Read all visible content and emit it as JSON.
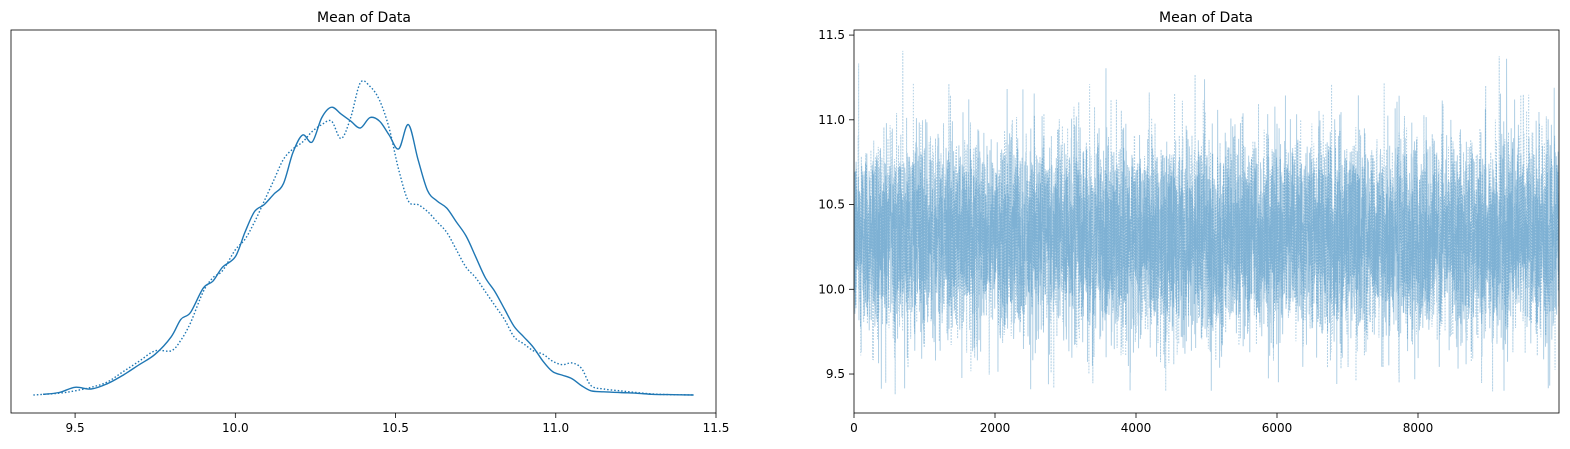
{
  "chart_data": [
    {
      "type": "line",
      "kind": "kde",
      "title": "Mean of Data",
      "xlabel": "",
      "ylabel": "",
      "xlim": [
        9.3,
        11.5
      ],
      "ylim": [
        0,
        1
      ],
      "xticks": [
        9.5,
        10.0,
        10.5,
        11.0,
        11.5
      ],
      "xtick_labels": [
        "9.5",
        "10.0",
        "10.5",
        "11.0",
        "11.5"
      ],
      "yticks_visible": false,
      "grid": false,
      "color": "#1f77b4",
      "series": [
        {
          "style": "solid",
          "x": [
            9.4,
            9.45,
            9.5,
            9.55,
            9.6,
            9.65,
            9.7,
            9.75,
            9.8,
            9.83,
            9.86,
            9.9,
            9.93,
            9.96,
            10.0,
            10.03,
            10.06,
            10.09,
            10.12,
            10.15,
            10.18,
            10.21,
            10.24,
            10.27,
            10.3,
            10.33,
            10.36,
            10.39,
            10.42,
            10.45,
            10.48,
            10.51,
            10.54,
            10.57,
            10.6,
            10.63,
            10.66,
            10.69,
            10.72,
            10.75,
            10.78,
            10.81,
            10.84,
            10.87,
            10.9,
            10.93,
            10.96,
            10.99,
            11.02,
            11.05,
            11.08,
            11.11,
            11.15,
            11.2,
            11.25,
            11.3,
            11.35,
            11.43
          ],
          "y": [
            0.005,
            0.01,
            0.025,
            0.02,
            0.035,
            0.06,
            0.09,
            0.12,
            0.17,
            0.22,
            0.24,
            0.31,
            0.33,
            0.37,
            0.4,
            0.47,
            0.53,
            0.55,
            0.58,
            0.61,
            0.7,
            0.75,
            0.73,
            0.8,
            0.83,
            0.81,
            0.79,
            0.77,
            0.8,
            0.79,
            0.75,
            0.71,
            0.78,
            0.68,
            0.59,
            0.56,
            0.54,
            0.5,
            0.46,
            0.4,
            0.34,
            0.3,
            0.25,
            0.2,
            0.17,
            0.14,
            0.1,
            0.07,
            0.06,
            0.05,
            0.03,
            0.015,
            0.012,
            0.01,
            0.008,
            0.005,
            0.004,
            0.003
          ]
        },
        {
          "style": "dotted",
          "x": [
            9.37,
            9.45,
            9.5,
            9.55,
            9.6,
            9.65,
            9.7,
            9.75,
            9.8,
            9.83,
            9.86,
            9.9,
            9.93,
            9.96,
            10.0,
            10.03,
            10.06,
            10.09,
            10.12,
            10.15,
            10.18,
            10.21,
            10.24,
            10.27,
            10.3,
            10.33,
            10.36,
            10.39,
            10.42,
            10.45,
            10.48,
            10.51,
            10.54,
            10.57,
            10.6,
            10.63,
            10.66,
            10.69,
            10.72,
            10.75,
            10.78,
            10.81,
            10.84,
            10.87,
            10.9,
            10.93,
            10.96,
            10.99,
            11.02,
            11.05,
            11.08,
            11.11,
            11.15,
            11.2,
            11.25,
            11.3,
            11.35,
            11.43
          ],
          "y": [
            0.003,
            0.008,
            0.015,
            0.025,
            0.04,
            0.07,
            0.1,
            0.13,
            0.13,
            0.16,
            0.21,
            0.3,
            0.34,
            0.36,
            0.42,
            0.45,
            0.5,
            0.56,
            0.62,
            0.68,
            0.71,
            0.73,
            0.76,
            0.78,
            0.79,
            0.74,
            0.8,
            0.9,
            0.89,
            0.85,
            0.77,
            0.65,
            0.56,
            0.55,
            0.53,
            0.5,
            0.47,
            0.42,
            0.37,
            0.34,
            0.3,
            0.26,
            0.22,
            0.17,
            0.15,
            0.13,
            0.12,
            0.1,
            0.09,
            0.095,
            0.08,
            0.03,
            0.02,
            0.015,
            0.01,
            0.006,
            0.004,
            0.003
          ]
        }
      ]
    },
    {
      "type": "line",
      "kind": "trace",
      "title": "Mean of Data",
      "xlabel": "",
      "ylabel": "",
      "xlim": [
        0,
        10000
      ],
      "ylim": [
        9.27,
        11.53
      ],
      "xticks": [
        0,
        2000,
        4000,
        6000,
        8000
      ],
      "xtick_labels": [
        "0",
        "2000",
        "4000",
        "6000",
        "8000"
      ],
      "yticks": [
        9.5,
        10.0,
        10.5,
        11.0,
        11.5
      ],
      "ytick_labels": [
        "9.5",
        "10.0",
        "10.5",
        "11.0",
        "11.5"
      ],
      "grid": false,
      "color": "#1f77b4",
      "alpha": 0.35,
      "n_draws": 10000,
      "series": [
        {
          "style": "solid",
          "mean": 10.31,
          "sd": 0.29,
          "min": 9.4,
          "max": 11.42
        },
        {
          "style": "dotted",
          "mean": 10.31,
          "sd": 0.29,
          "min": 9.36,
          "max": 11.41
        }
      ]
    }
  ]
}
